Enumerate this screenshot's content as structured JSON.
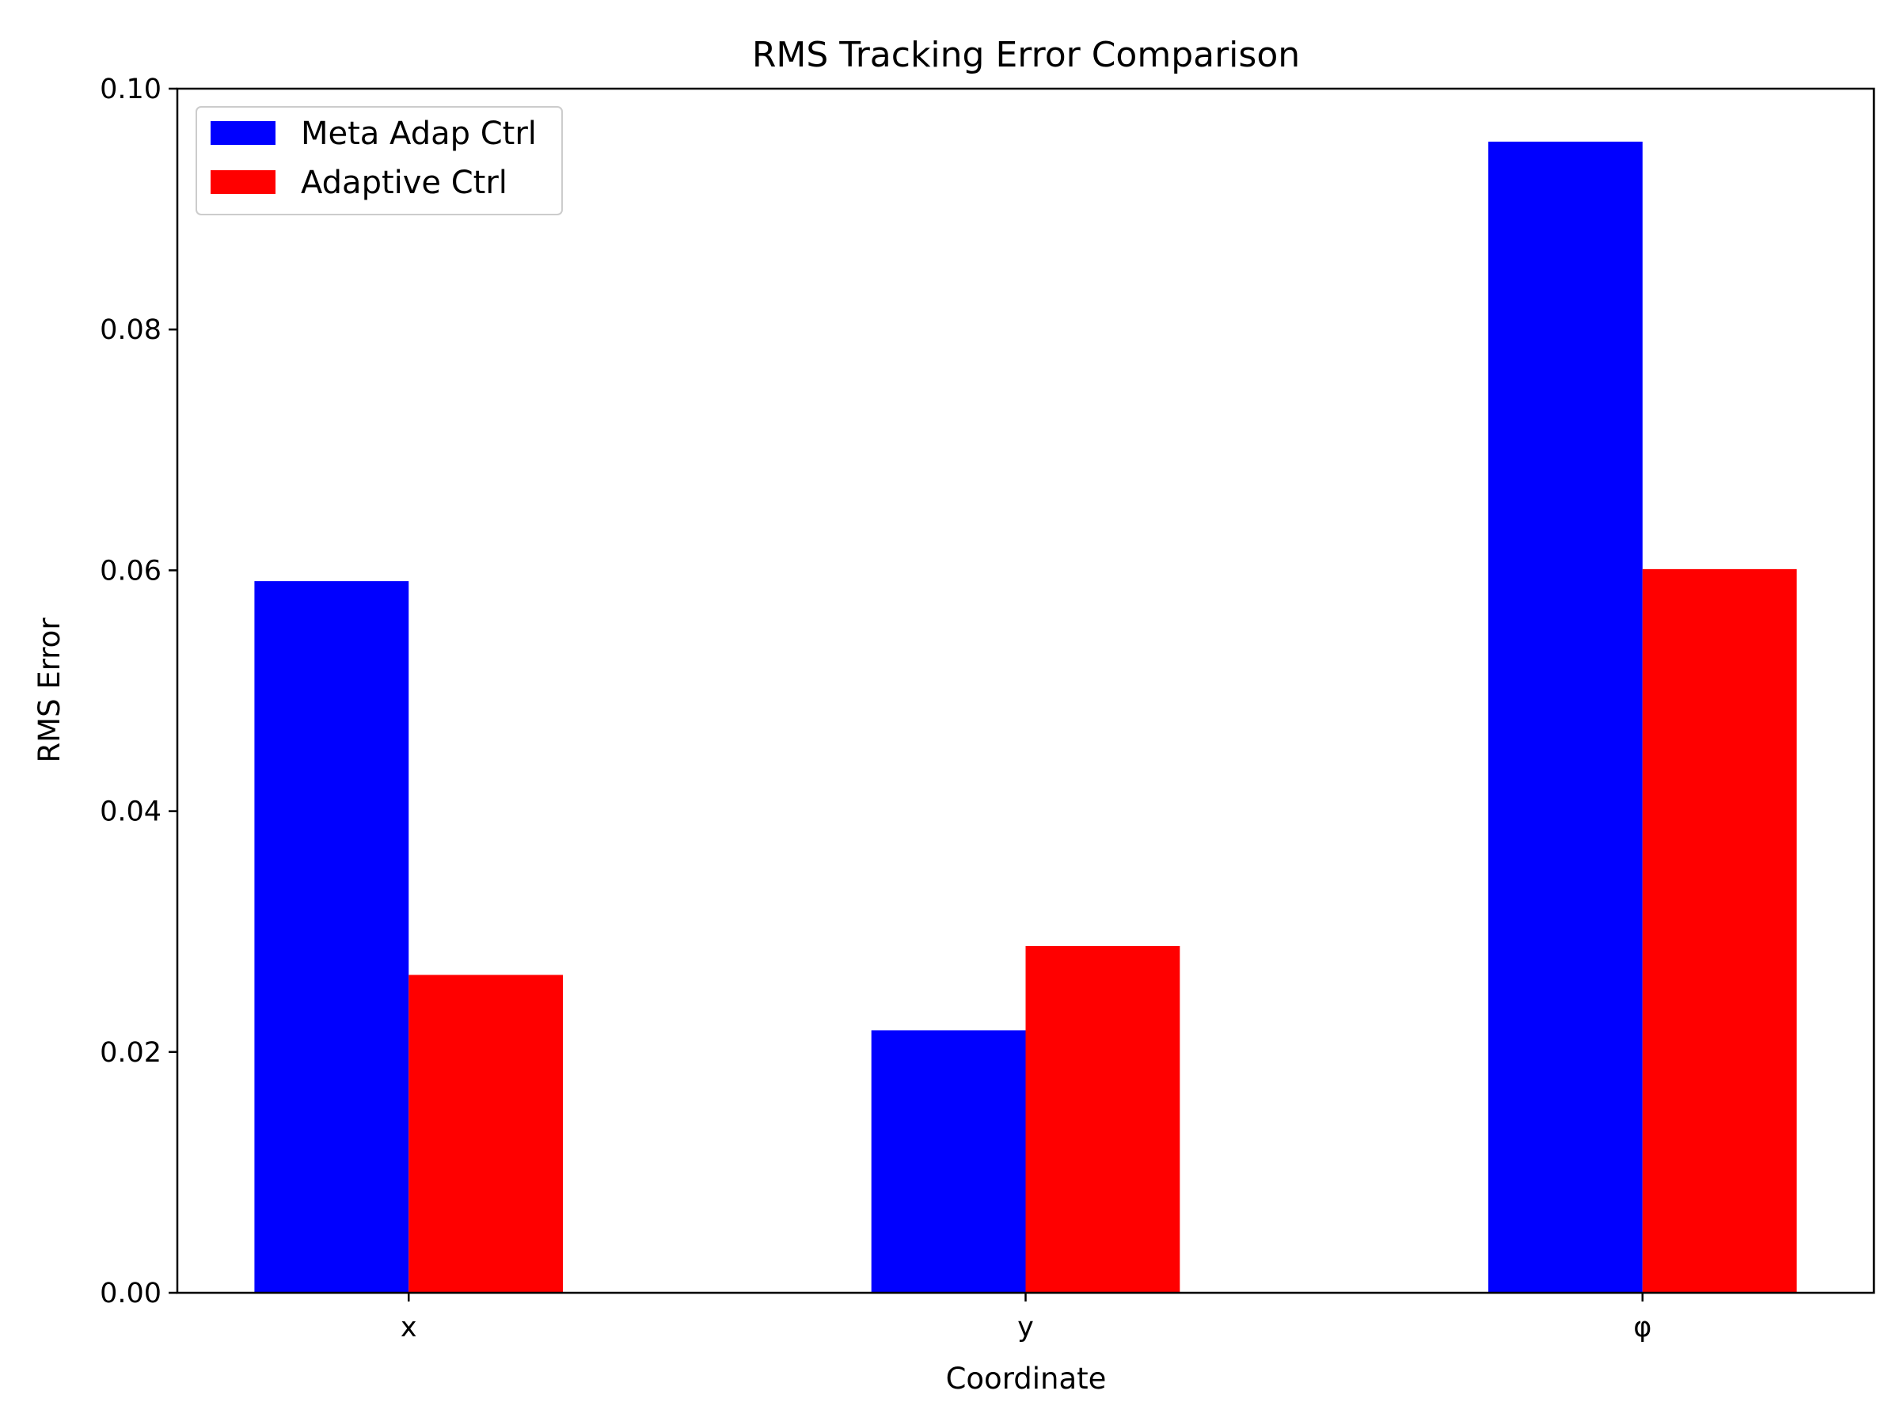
{
  "chart_data": {
    "type": "bar",
    "title": "RMS Tracking Error Comparison",
    "xlabel": "Coordinate",
    "ylabel": "RMS Error",
    "categories": [
      "x",
      "y",
      "φ"
    ],
    "ylim": [
      0,
      0.1
    ],
    "yticks": [
      0.0,
      0.02,
      0.04,
      0.06,
      0.08,
      0.1
    ],
    "ytick_labels": [
      "0.00",
      "0.02",
      "0.04",
      "0.06",
      "0.08",
      "0.10"
    ],
    "series": [
      {
        "name": "Meta Adap Ctrl",
        "color": "#0000ff",
        "values": [
          0.0591,
          0.0218,
          0.0956
        ]
      },
      {
        "name": "Adaptive Ctrl",
        "color": "#ff0000",
        "values": [
          0.0264,
          0.0288,
          0.0601
        ]
      }
    ],
    "legend_position": "top-left",
    "grid": false
  }
}
